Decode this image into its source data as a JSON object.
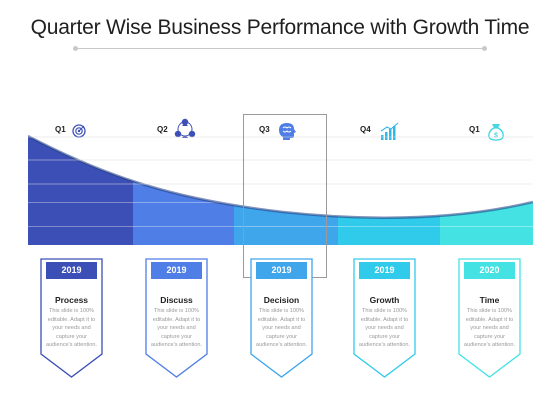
{
  "title": "Quarter Wise Business Performance with Growth Time",
  "colors": {
    "band1": "#3c4fb6",
    "band2": "#4f7ee6",
    "band3": "#3fa6ec",
    "band4": "#30cbea",
    "band5": "#45e2e4"
  },
  "quarters": [
    {
      "label": "Q1",
      "icon": "target-icon"
    },
    {
      "label": "Q2",
      "icon": "team-network-icon"
    },
    {
      "label": "Q3",
      "icon": "brain-head-icon"
    },
    {
      "label": "Q4",
      "icon": "growth-bars-icon"
    },
    {
      "label": "Q1",
      "icon": "money-bag-icon"
    }
  ],
  "cards": [
    {
      "year": "2019",
      "title": "Process",
      "desc": "This slide is 100% editable. Adapt it to your needs and capture your audience's attention."
    },
    {
      "year": "2019",
      "title": "Discuss",
      "desc": "This slide is 100% editable. Adapt it to your needs and capture your audience's attention."
    },
    {
      "year": "2019",
      "title": "Decision",
      "desc": "This slide is 100% editable. Adapt it to your needs and capture your audience's attention."
    },
    {
      "year": "2019",
      "title": "Growth",
      "desc": "This slide is 100% editable. Adapt it to your needs and capture your audience's attention."
    },
    {
      "year": "2020",
      "title": "Time",
      "desc": "This slide is 100% editable. Adapt it to your needs and capture your audience's attention."
    }
  ]
}
